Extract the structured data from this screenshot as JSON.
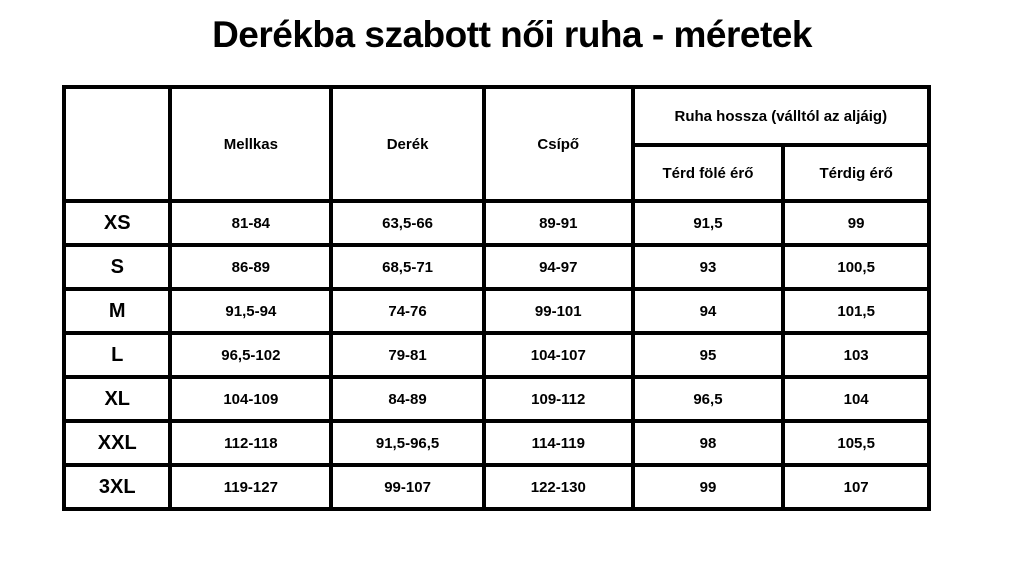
{
  "page": {
    "background": "#ffffff"
  },
  "chart_data": {
    "type": "table",
    "title": "Derékba szabott női ruha - méretek",
    "header": {
      "size_col": "",
      "mellkas": "Mellkas",
      "derek": "Derék",
      "csipo": "Csípő",
      "group": "Ruha hossza (válltól az aljáig)",
      "terd_fole_ero": "Térd fölé érő",
      "terdig_ero": "Térdig érő"
    },
    "rows": [
      {
        "size": "XS",
        "mellkas": "81-84",
        "derek": "63,5-66",
        "csipo": "89-91",
        "terd_fole_ero": "91,5",
        "terdig_ero": "99"
      },
      {
        "size": "S",
        "mellkas": "86-89",
        "derek": "68,5-71",
        "csipo": "94-97",
        "terd_fole_ero": "93",
        "terdig_ero": "100,5"
      },
      {
        "size": "M",
        "mellkas": "91,5-94",
        "derek": "74-76",
        "csipo": "99-101",
        "terd_fole_ero": "94",
        "terdig_ero": "101,5"
      },
      {
        "size": "L",
        "mellkas": "96,5-102",
        "derek": "79-81",
        "csipo": "104-107",
        "terd_fole_ero": "95",
        "terdig_ero": "103"
      },
      {
        "size": "XL",
        "mellkas": "104-109",
        "derek": "84-89",
        "csipo": "109-112",
        "terd_fole_ero": "96,5",
        "terdig_ero": "104"
      },
      {
        "size": "XXL",
        "mellkas": "112-118",
        "derek": "91,5-96,5",
        "csipo": "114-119",
        "terd_fole_ero": "98",
        "terdig_ero": "105,5"
      },
      {
        "size": "3XL",
        "mellkas": "119-127",
        "derek": "99-107",
        "csipo": "122-130",
        "terd_fole_ero": "99",
        "terdig_ero": "107"
      }
    ],
    "layout": {
      "legend_position": "none",
      "grid": "full-borders"
    },
    "colors": {
      "border": "#000000",
      "text": "#000000",
      "background": "#ffffff"
    }
  }
}
